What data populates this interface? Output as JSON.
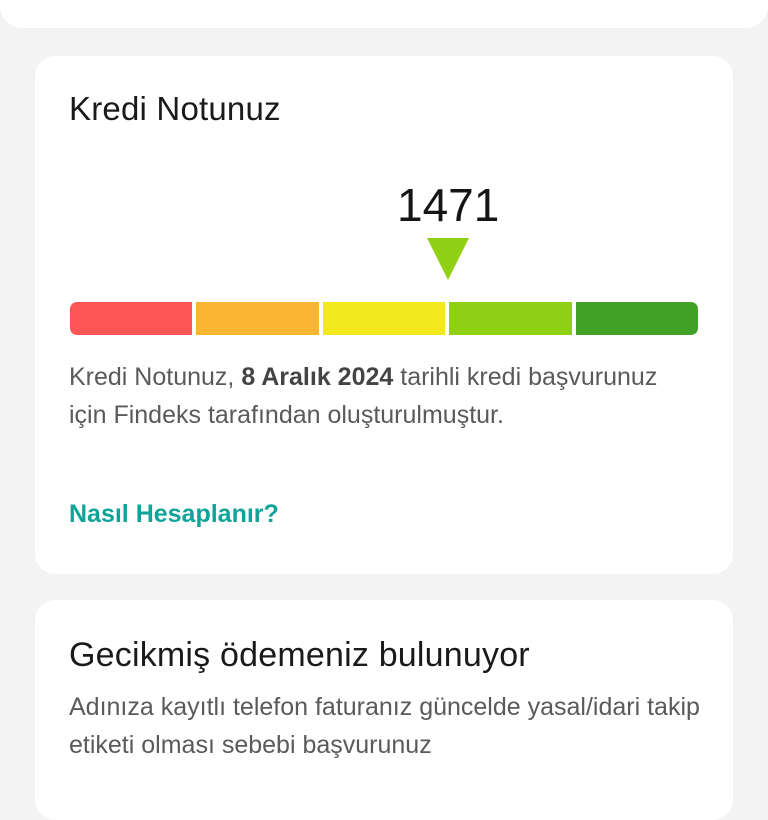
{
  "credit_card": {
    "title": "Kredi Notunuz",
    "score": "1471",
    "segment_colors": [
      "#fe5656",
      "#fcb433",
      "#f2e81e",
      "#8fd014",
      "#42a227"
    ],
    "marker_color": "#8fd014",
    "description": {
      "before": "Kredi Notunuz,",
      "bold": "8 Aralık 2024",
      "after": "tarihli kredi başvurunuz için Findeks tarafından oluşturulmuştur."
    },
    "link_label": "Nasıl Hesaplanır?"
  },
  "late_payment_card": {
    "title": "Gecikmiş ödemeniz bulunuyor",
    "description": "Adınıza kayıtlı telefon faturanız güncelde yasal/idari takip etiketi olması sebebi başvurunuz"
  }
}
